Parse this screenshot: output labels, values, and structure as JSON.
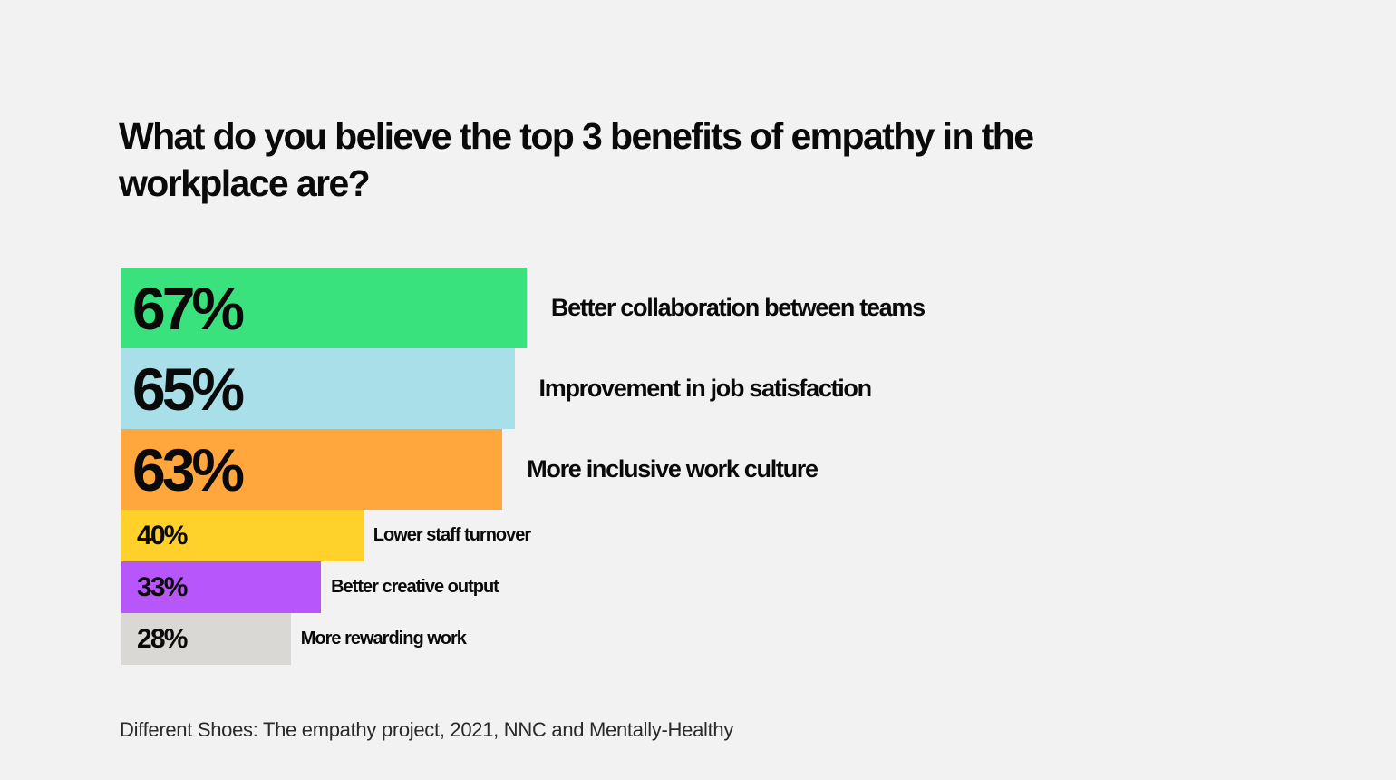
{
  "title": "What do you believe the top 3 benefits of empathy in the workplace are?",
  "source": "Different Shoes: The empathy project, 2021, NNC and Mentally-Healthy",
  "chart_data": {
    "type": "bar",
    "orientation": "horizontal",
    "title": "What do you believe the top 3 benefits of empathy in the workplace are?",
    "categories": [
      "Better collaboration between teams",
      "Improvement in job satisfaction",
      "More inclusive work culture",
      "Lower staff turnover",
      "Better creative output",
      "More rewarding work"
    ],
    "values": [
      67,
      65,
      63,
      40,
      33,
      28
    ],
    "value_labels": [
      "67%",
      "65%",
      "63%",
      "40%",
      "33%",
      "28%"
    ],
    "colors": [
      "#3ae27e",
      "#a8dfe8",
      "#ffa63d",
      "#ffd12a",
      "#b757fb",
      "#d9d8d5"
    ],
    "unit": "%",
    "xlabel": "",
    "ylabel": "",
    "grid": false,
    "legend": "none"
  }
}
